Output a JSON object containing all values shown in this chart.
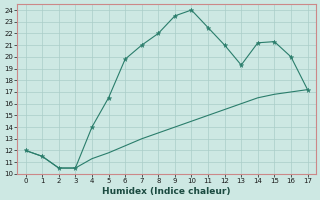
{
  "xlabel": "Humidex (Indice chaleur)",
  "x_upper": [
    0,
    1,
    2,
    3,
    4,
    5,
    6,
    7,
    8,
    9,
    10,
    11,
    12,
    13,
    14,
    15,
    16,
    17
  ],
  "y_upper": [
    12,
    11.5,
    10.5,
    10.5,
    14,
    16.5,
    19.8,
    21,
    22,
    23.5,
    24,
    22.5,
    21,
    19.3,
    21.2,
    21.3,
    20,
    17.2
  ],
  "x_lower": [
    0,
    1,
    2,
    3,
    4,
    5,
    6,
    7,
    8,
    9,
    10,
    11,
    12,
    13,
    14,
    15,
    16,
    17
  ],
  "y_lower": [
    12,
    11.5,
    10.5,
    10.5,
    11.3,
    11.8,
    12.4,
    13.0,
    13.5,
    14.0,
    14.5,
    15.0,
    15.5,
    16.0,
    16.5,
    16.8,
    17.0,
    17.2
  ],
  "line_color": "#2a7d6b",
  "bg_color": "#cde8e3",
  "grid_color": "#aacdc8",
  "border_color": "#cc8888",
  "xlim": [
    -0.5,
    17.5
  ],
  "ylim": [
    10,
    24.5
  ],
  "xticks": [
    0,
    1,
    2,
    3,
    4,
    5,
    6,
    7,
    8,
    9,
    10,
    11,
    12,
    13,
    14,
    15,
    16,
    17
  ],
  "yticks": [
    10,
    11,
    12,
    13,
    14,
    15,
    16,
    17,
    18,
    19,
    20,
    21,
    22,
    23,
    24
  ]
}
